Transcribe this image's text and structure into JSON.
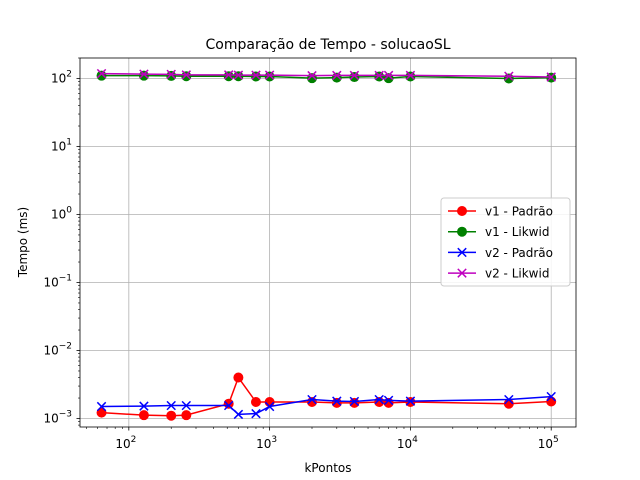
{
  "chart_data": {
    "type": "line",
    "title": "Comparação de Tempo - solucaoSL",
    "xlabel": "kPontos",
    "ylabel": "Tempo (ms)",
    "xscale": "log",
    "yscale": "log",
    "xlim": [
      45,
      150000
    ],
    "ylim": [
      0.00075,
      200
    ],
    "grid": true,
    "legend_position": "center-right",
    "x_ticks": [
      {
        "value": 100,
        "base": "10",
        "exp": "2"
      },
      {
        "value": 1000,
        "base": "10",
        "exp": "3"
      },
      {
        "value": 10000,
        "base": "10",
        "exp": "4"
      },
      {
        "value": 100000,
        "base": "10",
        "exp": "5"
      }
    ],
    "y_ticks": [
      {
        "value": 0.001,
        "base": "10",
        "exp": "−3"
      },
      {
        "value": 0.01,
        "base": "10",
        "exp": "−2"
      },
      {
        "value": 0.1,
        "base": "10",
        "exp": "−1"
      },
      {
        "value": 1,
        "base": "10",
        "exp": "0"
      },
      {
        "value": 10,
        "base": "10",
        "exp": "1"
      },
      {
        "value": 100,
        "base": "10",
        "exp": "2"
      }
    ],
    "x": [
      64,
      128,
      200,
      256,
      512,
      600,
      800,
      1000,
      2000,
      3000,
      4000,
      6000,
      7000,
      10000,
      50000,
      100000
    ],
    "series": [
      {
        "name": "v1 - Padrão",
        "color": "#ff0000",
        "marker": "circle",
        "values": [
          0.00122,
          0.00112,
          0.0011,
          0.00112,
          0.00165,
          0.004,
          0.00175,
          0.00175,
          0.00175,
          0.0017,
          0.0017,
          0.00175,
          0.0017,
          0.00175,
          0.00165,
          0.00178
        ]
      },
      {
        "name": "v1 - Likwid",
        "color": "#008000",
        "marker": "circle",
        "values": [
          110,
          110,
          109,
          108,
          108,
          108,
          107,
          107,
          101,
          103,
          105,
          107,
          101,
          107,
          100,
          103
        ]
      },
      {
        "name": "v2 - Padrão",
        "color": "#0000ff",
        "marker": "x",
        "values": [
          0.0015,
          0.00152,
          0.00155,
          0.00155,
          0.00155,
          0.00115,
          0.00118,
          0.0015,
          0.0019,
          0.0018,
          0.00178,
          0.0019,
          0.00185,
          0.0018,
          0.0019,
          0.0021
        ]
      },
      {
        "name": "v2 - Likwid",
        "color": "#bf00bf",
        "marker": "x",
        "values": [
          118,
          116,
          115,
          113,
          113,
          112,
          112,
          112,
          110,
          111,
          111,
          111,
          111,
          111,
          108,
          105
        ]
      }
    ]
  }
}
